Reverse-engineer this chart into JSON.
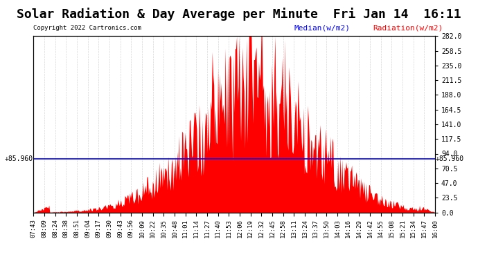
{
  "title": "Solar Radiation & Day Average per Minute  Fri Jan 14  16:11",
  "copyright": "Copyright 2022 Cartronics.com",
  "median_label": "Median(w/m2)",
  "radiation_label": "Radiation(w/m2)",
  "median_value": 85.96,
  "y_right_ticks": [
    0.0,
    23.5,
    47.0,
    70.5,
    94.0,
    117.5,
    141.0,
    164.5,
    188.0,
    211.5,
    235.0,
    258.5,
    282.0
  ],
  "ylim": [
    0,
    282.0
  ],
  "background_color": "#ffffff",
  "bar_color": "#ff0000",
  "median_line_color": "#0000ff",
  "grid_color": "#cccccc",
  "title_fontsize": 13,
  "x_labels": [
    "07:43",
    "08:09",
    "08:24",
    "08:38",
    "08:51",
    "09:04",
    "09:17",
    "09:30",
    "09:43",
    "09:56",
    "10:09",
    "10:22",
    "10:35",
    "10:48",
    "11:01",
    "11:14",
    "11:27",
    "11:40",
    "11:53",
    "12:06",
    "12:19",
    "12:32",
    "12:45",
    "12:58",
    "13:11",
    "13:24",
    "13:37",
    "13:50",
    "14:03",
    "14:16",
    "14:29",
    "14:42",
    "14:55",
    "15:08",
    "15:21",
    "15:34",
    "15:47",
    "16:00"
  ],
  "n_points": 493
}
